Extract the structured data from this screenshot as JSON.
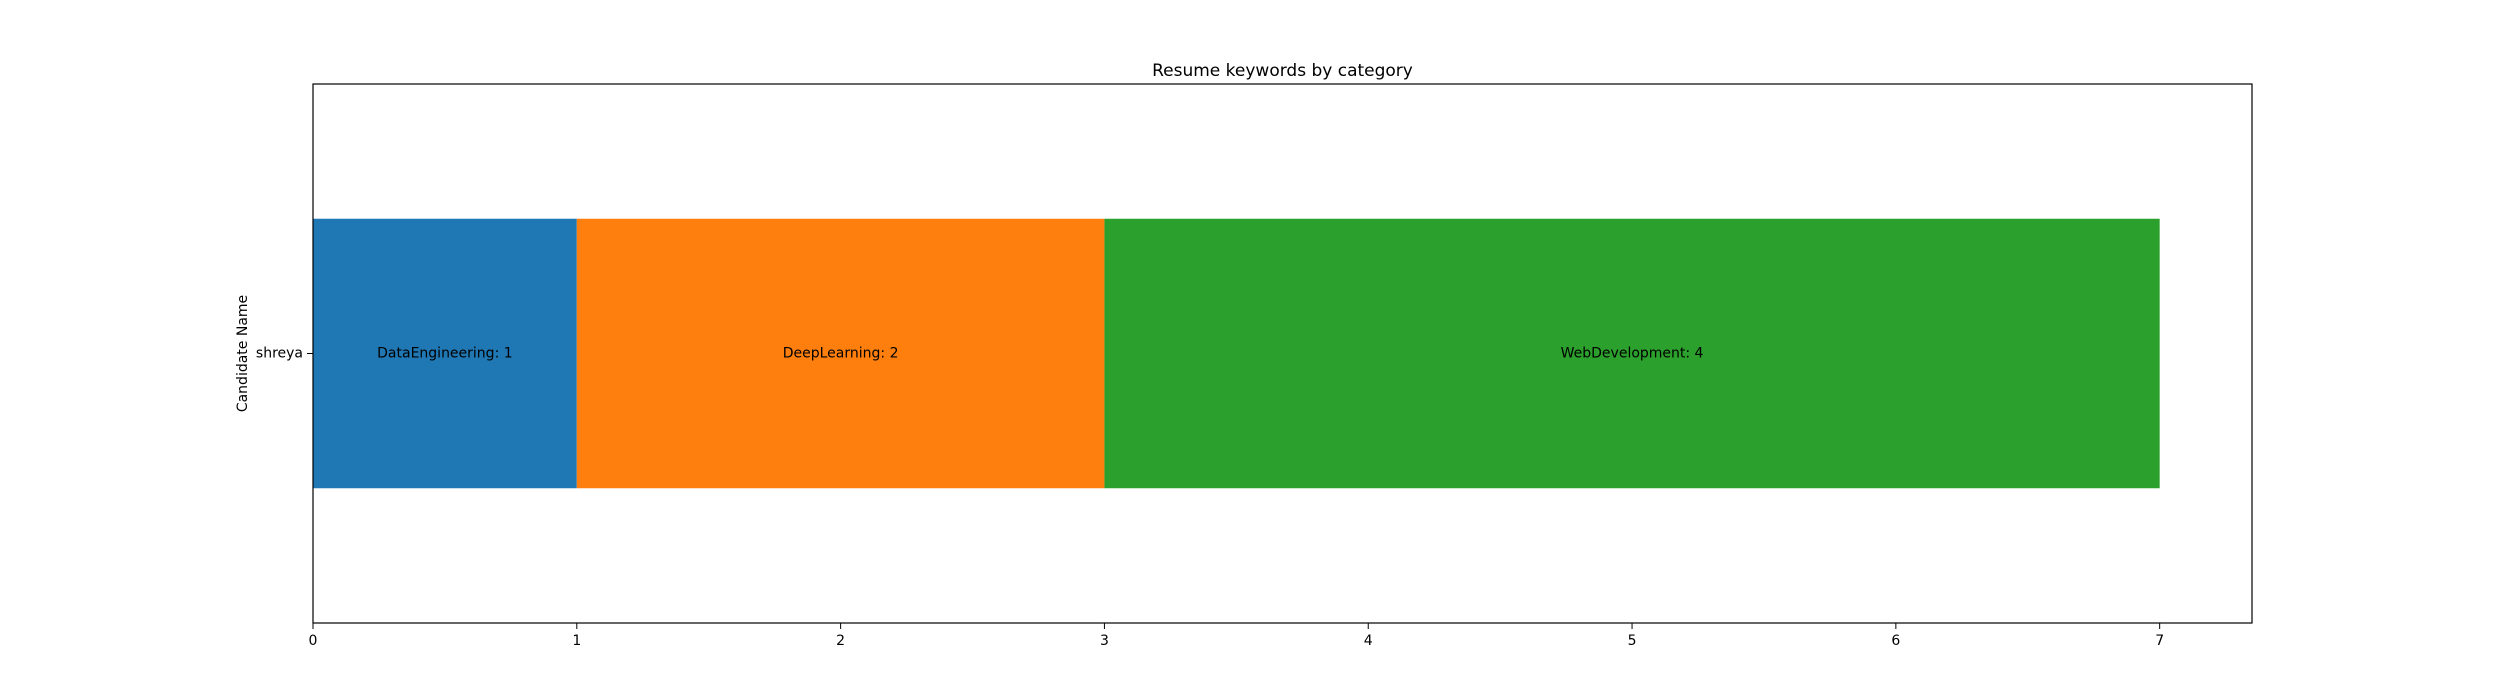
{
  "chart_data": {
    "type": "bar",
    "orientation": "horizontal",
    "stacked": true,
    "title": "Resume keywords by category",
    "xlabel": "",
    "ylabel": "Candidate Name",
    "categories": [
      "shreya"
    ],
    "series": [
      {
        "label": "DataEngineering: 1",
        "values": [
          1
        ],
        "color": "#1f77b4"
      },
      {
        "label": "DeepLearning: 2",
        "values": [
          2
        ],
        "color": "#ff7f0e"
      },
      {
        "label": "WebDevelopment: 4",
        "values": [
          4
        ],
        "color": "#2ca02c"
      }
    ],
    "xlim": [
      0,
      7.35
    ],
    "xticks": [
      0,
      1,
      2,
      3,
      4,
      5,
      6,
      7
    ],
    "grid": false
  }
}
